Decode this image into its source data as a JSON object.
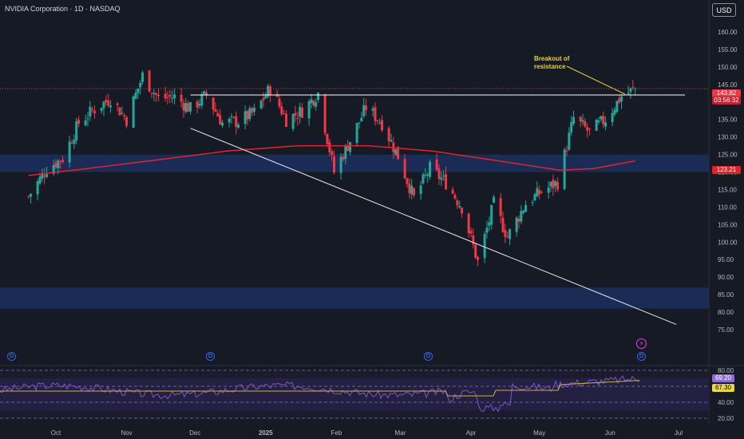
{
  "header": {
    "title": "NVIDIA Corporation · 1D · NASDAQ",
    "currency_button": "USD"
  },
  "price_badges": {
    "last_price": "143.82",
    "countdown": "03:56:32",
    "ma_value": "123.21"
  },
  "rsi_badges": {
    "rsi": "69.20",
    "rsi_ma": "67.30"
  },
  "annotation": {
    "line1": "Breakout of",
    "line2": "resistance"
  },
  "events": {
    "earnings_label": "D",
    "split_icon": "lightning-icon"
  },
  "colors": {
    "up": "#26a69a",
    "down": "#f23645",
    "ma": "#e0242c",
    "zone": "#1c3366",
    "rsi_line": "#7e57c2",
    "rsi_ma": "#c9b536",
    "background": "#161a25"
  },
  "chart_data": {
    "type": "candlestick",
    "symbol": "NVIDIA Corporation",
    "interval": "1D",
    "exchange": "NASDAQ",
    "y_range": [
      70,
      165
    ],
    "y_ticks": [
      75,
      80,
      85,
      90,
      95,
      100,
      105,
      110,
      115,
      120,
      125,
      130,
      135,
      140,
      145,
      150,
      155,
      160
    ],
    "x_ticks": [
      "Oct",
      "Nov",
      "Dec",
      "2025",
      "Feb",
      "Mar",
      "Apr",
      "May",
      "Jun",
      "Jul"
    ],
    "price_path": [
      [
        "2024-09-19",
        113
      ],
      [
        "2024-09-27",
        121
      ],
      [
        "2024-10-04",
        124
      ],
      [
        "2024-10-11",
        134
      ],
      [
        "2024-10-18",
        138
      ],
      [
        "2024-10-25",
        141
      ],
      [
        "2024-11-01",
        135
      ],
      [
        "2024-11-08",
        147.5
      ],
      [
        "2024-11-15",
        141
      ],
      [
        "2024-11-22",
        141.5
      ],
      [
        "2024-11-29",
        138
      ],
      [
        "2024-12-06",
        142
      ],
      [
        "2024-12-13",
        134
      ],
      [
        "2024-12-20",
        134.5
      ],
      [
        "2024-12-27",
        137
      ],
      [
        "2025-01-03",
        144
      ],
      [
        "2025-01-10",
        135
      ],
      [
        "2025-01-17",
        137.5
      ],
      [
        "2025-01-24",
        142.5
      ],
      [
        "2025-01-31",
        120
      ],
      [
        "2025-02-07",
        129
      ],
      [
        "2025-02-14",
        138.5
      ],
      [
        "2025-02-21",
        134
      ],
      [
        "2025-02-28",
        124.5
      ],
      [
        "2025-03-07",
        112.5
      ],
      [
        "2025-03-14",
        121
      ],
      [
        "2025-03-21",
        117
      ],
      [
        "2025-03-28",
        110
      ],
      [
        "2025-04-04",
        94.3
      ],
      [
        "2025-04-11",
        110.9
      ],
      [
        "2025-04-17",
        101.5
      ],
      [
        "2025-04-25",
        111
      ],
      [
        "2025-05-02",
        114.5
      ],
      [
        "2025-05-09",
        117
      ],
      [
        "2025-05-16",
        135.4
      ],
      [
        "2025-05-23",
        131.3
      ],
      [
        "2025-05-30",
        135.1
      ],
      [
        "2025-06-06",
        141.7
      ],
      [
        "2025-06-12",
        143.8
      ]
    ],
    "moving_average": [
      [
        "2024-09-19",
        119
      ],
      [
        "2024-10-15",
        121
      ],
      [
        "2024-11-15",
        123.5
      ],
      [
        "2024-12-15",
        126
      ],
      [
        "2025-01-15",
        127.5
      ],
      [
        "2025-02-15",
        127.5
      ],
      [
        "2025-03-15",
        126
      ],
      [
        "2025-04-15",
        123
      ],
      [
        "2025-05-10",
        120.5
      ],
      [
        "2025-05-25",
        121
      ],
      [
        "2025-06-12",
        123.2
      ]
    ],
    "support_zones": [
      [
        120,
        125
      ],
      [
        81,
        87
      ]
    ],
    "resistance_line": 142,
    "trendline": [
      [
        "2024-11-29",
        132.5
      ],
      [
        "2025-06-30",
        76.5
      ]
    ],
    "rsi": {
      "levels": [
        20,
        40,
        60,
        80
      ],
      "value": 69.2,
      "ma_value": 67.3
    }
  }
}
